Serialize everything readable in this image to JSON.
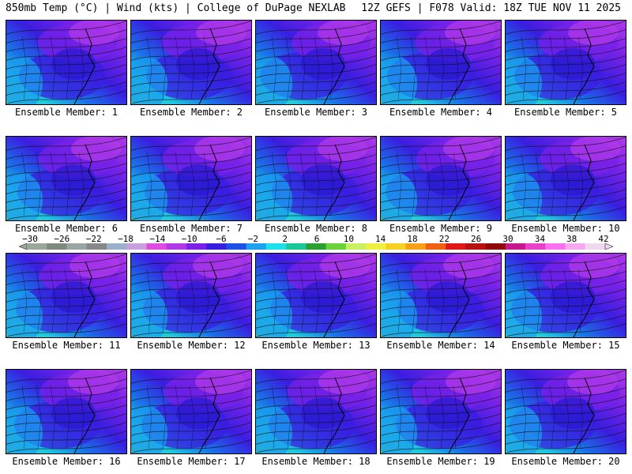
{
  "header": {
    "left": "850mb Temp (°C) | Wind (kts) | College of DuPage NEXLAB",
    "right": "12Z GEFS | F078 Valid: 18Z TUE NOV 11 2025"
  },
  "panels": [
    {
      "label": "Ensemble Member: 1"
    },
    {
      "label": "Ensemble Member: 2"
    },
    {
      "label": "Ensemble Member: 3"
    },
    {
      "label": "Ensemble Member: 4"
    },
    {
      "label": "Ensemble Member: 5"
    },
    {
      "label": "Ensemble Member: 6"
    },
    {
      "label": "Ensemble Member: 7"
    },
    {
      "label": "Ensemble Member: 8"
    },
    {
      "label": "Ensemble Member: 9"
    },
    {
      "label": "Ensemble Member: 10"
    },
    {
      "label": "Ensemble Member: 11"
    },
    {
      "label": "Ensemble Member: 12"
    },
    {
      "label": "Ensemble Member: 13"
    },
    {
      "label": "Ensemble Member: 14"
    },
    {
      "label": "Ensemble Member: 15"
    },
    {
      "label": "Ensemble Member: 16"
    },
    {
      "label": "Ensemble Member: 17"
    },
    {
      "label": "Ensemble Member: 18"
    },
    {
      "label": "Ensemble Member: 19"
    },
    {
      "label": "Ensemble Member: 20"
    }
  ],
  "colorbar": {
    "labels": [
      "−30",
      "−26",
      "−22",
      "−18",
      "−14",
      "−10",
      "−6",
      "−2",
      "2",
      "6",
      "10",
      "14",
      "18",
      "22",
      "26",
      "30",
      "34",
      "38",
      "42"
    ],
    "colors": [
      "#9aa79a",
      "#7d8a7d",
      "#9aa6a6",
      "#888888",
      "#9ab0c8",
      "#c8a0e0",
      "#e04ce0",
      "#b03ae8",
      "#7a22e8",
      "#3a1ee0",
      "#1e50e8",
      "#1ea0f0",
      "#1ee0e8",
      "#18c898",
      "#2aa030",
      "#6ad23a",
      "#c8f060",
      "#f0f040",
      "#f8d020",
      "#f8a018",
      "#f06010",
      "#e01818",
      "#b81010",
      "#900808",
      "#c81890",
      "#e840c8",
      "#f870f0",
      "#f8a8f0",
      "#f0d8f0"
    ]
  }
}
